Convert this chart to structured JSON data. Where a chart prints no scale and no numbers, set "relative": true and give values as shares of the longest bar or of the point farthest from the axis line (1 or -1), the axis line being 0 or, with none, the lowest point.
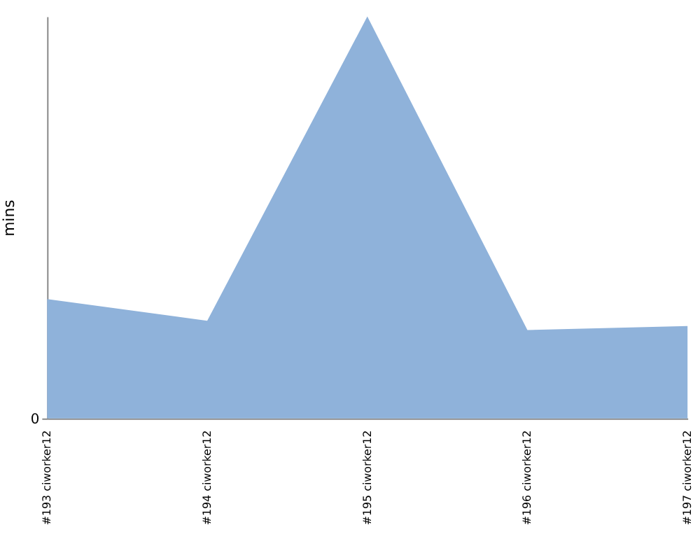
{
  "chart_data": {
    "type": "area",
    "ylabel": "mins",
    "relative": true,
    "annotations": [
      "0"
    ],
    "color": "#8fb2da",
    "categories": [
      "#193 ciworker12",
      "#194 ciworker12",
      "#195 ciworker12",
      "#196 ciworker12",
      "#197 ciworker12"
    ],
    "values": [
      0.297,
      0.243,
      1,
      0.22,
      0.23
    ]
  }
}
